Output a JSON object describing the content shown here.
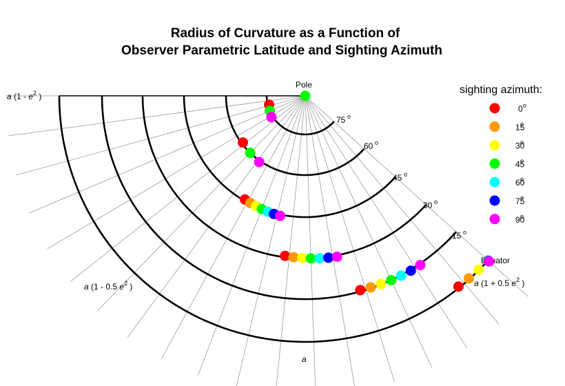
{
  "chart_data": {
    "type": "scatter",
    "title_lines": [
      "Radius of Curvature as a Function of",
      "Observer Parametric Latitude and Sighting Azimuth"
    ],
    "axis": {
      "pole_label": "Pole",
      "equator_label": "Equator",
      "radial_labels": [
        {
          "a": "a",
          "open": "(1 - ",
          "e": "e",
          "exp": "2",
          "close": ")"
        },
        {
          "a": "a",
          "open": "(1 - 0.5 ",
          "e": "e",
          "exp": "2",
          "close": ")"
        },
        {
          "a": "a",
          "open": "",
          "e": "",
          "exp": "",
          "close": ""
        },
        {
          "a": "a",
          "open": "(1 + 0.5 ",
          "e": "e",
          "exp": "2",
          "close": ")"
        }
      ],
      "latitude_ticks": [
        {
          "value": "75",
          "deg": "o"
        },
        {
          "value": "60",
          "deg": "o"
        },
        {
          "value": "45",
          "deg": "o"
        },
        {
          "value": "30",
          "deg": "o"
        },
        {
          "value": "15",
          "deg": "o"
        }
      ],
      "latitude_range_deg": [
        0,
        90
      ],
      "grid_latitude_step_deg": 5
    },
    "legend": {
      "title": "sighting azimuth:",
      "placement": "right",
      "entries": [
        {
          "azimuth": 0,
          "label": "0",
          "deg": "o",
          "color": "#ff0000"
        },
        {
          "azimuth": 15,
          "label": "15",
          "deg": "o",
          "color": "#ff9900"
        },
        {
          "azimuth": 30,
          "label": "30",
          "deg": "o",
          "color": "#ffff00"
        },
        {
          "azimuth": 45,
          "label": "45",
          "deg": "o",
          "color": "#00ff00"
        },
        {
          "azimuth": 60,
          "label": "60",
          "deg": "o",
          "color": "#00ffff"
        },
        {
          "azimuth": 75,
          "label": "75",
          "deg": "o",
          "color": "#0000ff"
        },
        {
          "azimuth": 90,
          "label": "90",
          "deg": "o",
          "color": "#ff00ff"
        }
      ]
    },
    "curves": [
      {
        "latitudes": [
          90,
          75,
          60,
          45,
          30,
          15,
          0
        ],
        "azimuth_rule": "row",
        "radial_rule": "meridian"
      },
      {
        "latitudes": [
          90,
          75,
          60,
          45,
          30,
          15,
          0
        ],
        "azimuth_rule": "row",
        "radial_rule": "prime_vertical"
      }
    ],
    "points": [
      {
        "latitude": 90,
        "azimuth": 45
      },
      {
        "latitude": 75,
        "azimuth": 0
      },
      {
        "latitude": 75,
        "azimuth": 45
      },
      {
        "latitude": 75,
        "azimuth": 90
      },
      {
        "latitude": 60,
        "azimuth": 0
      },
      {
        "latitude": 60,
        "azimuth": 45
      },
      {
        "latitude": 60,
        "azimuth": 90
      },
      {
        "latitude": 45,
        "azimuth": 0
      },
      {
        "latitude": 45,
        "azimuth": 15
      },
      {
        "latitude": 45,
        "azimuth": 30
      },
      {
        "latitude": 45,
        "azimuth": 45
      },
      {
        "latitude": 45,
        "azimuth": 60
      },
      {
        "latitude": 45,
        "azimuth": 75
      },
      {
        "latitude": 45,
        "azimuth": 90
      },
      {
        "latitude": 30,
        "azimuth": 0
      },
      {
        "latitude": 30,
        "azimuth": 15
      },
      {
        "latitude": 30,
        "azimuth": 30
      },
      {
        "latitude": 30,
        "azimuth": 45
      },
      {
        "latitude": 30,
        "azimuth": 60
      },
      {
        "latitude": 30,
        "azimuth": 75
      },
      {
        "latitude": 30,
        "azimuth": 90
      },
      {
        "latitude": 15,
        "azimuth": 0
      },
      {
        "latitude": 15,
        "azimuth": 15
      },
      {
        "latitude": 15,
        "azimuth": 30
      },
      {
        "latitude": 15,
        "azimuth": 45
      },
      {
        "latitude": 15,
        "azimuth": 60
      },
      {
        "latitude": 15,
        "azimuth": 75
      },
      {
        "latitude": 15,
        "azimuth": 90
      },
      {
        "latitude": 0,
        "azimuth": 0
      },
      {
        "latitude": 0,
        "azimuth": 15
      },
      {
        "latitude": 0,
        "azimuth": 30
      },
      {
        "latitude": 0,
        "azimuth": 45
      },
      {
        "latitude": 0,
        "azimuth": 60
      },
      {
        "latitude": 0,
        "azimuth": 75
      },
      {
        "latitude": 0,
        "azimuth": 90
      }
    ]
  }
}
